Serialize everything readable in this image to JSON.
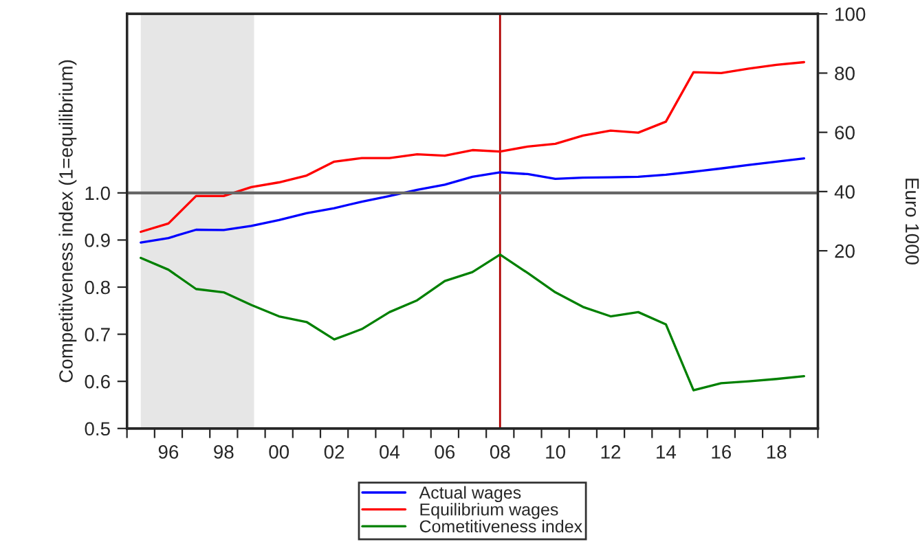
{
  "chart_data": {
    "type": "line",
    "ylabel": "Competitiveness index (1=equilibrium)",
    "y2label": "Euro 1000",
    "x": [
      1995,
      1996,
      1997,
      1998,
      1999,
      2000,
      2001,
      2002,
      2003,
      2004,
      2005,
      2006,
      2007,
      2008,
      2009,
      2010,
      2011,
      2012,
      2013,
      2014,
      2015,
      2016,
      2017,
      2018,
      2019
    ],
    "series": [
      {
        "name": "Actual wages",
        "color": "#0000ff",
        "axis": "y2",
        "values": [
          22.8,
          24.3,
          27.1,
          27.0,
          28.4,
          30.4,
          32.7,
          34.4,
          36.6,
          38.5,
          40.6,
          42.3,
          45.0,
          46.5,
          45.9,
          44.3,
          44.7,
          44.8,
          45.0,
          45.7,
          46.7,
          47.8,
          49.0,
          50.1,
          51.2
        ]
      },
      {
        "name": "Equilibrium wages",
        "color": "#ff0000",
        "axis": "y2",
        "values": [
          26.4,
          29.2,
          38.5,
          38.5,
          41.5,
          43.1,
          45.4,
          50.1,
          51.3,
          51.3,
          52.6,
          52.1,
          54.0,
          53.5,
          55.2,
          56.1,
          58.9,
          60.6,
          59.9,
          63.6,
          80.3,
          80.0,
          81.5,
          82.8,
          83.7
        ]
      },
      {
        "name": "Cometitiveness index",
        "color": "#008000",
        "values": [
          0.862,
          0.837,
          0.796,
          0.789,
          0.762,
          0.738,
          0.726,
          0.689,
          0.711,
          0.747,
          0.772,
          0.813,
          0.832,
          0.869,
          0.83,
          0.789,
          0.758,
          0.738,
          0.747,
          0.721,
          0.581,
          0.596,
          0.6,
          0.605,
          0.611
        ]
      }
    ],
    "xlim": [
      1994.5,
      2019.5
    ],
    "xticks": [
      {
        "value": 1994.5,
        "label": null
      },
      {
        "value": 1995.5,
        "label": null
      },
      {
        "value": 1996,
        "label": "96"
      },
      {
        "value": 1996.5,
        "label": null
      },
      {
        "value": 1997.5,
        "label": null
      },
      {
        "value": 1998,
        "label": "98"
      },
      {
        "value": 1998.5,
        "label": null
      },
      {
        "value": 1999.5,
        "label": null
      },
      {
        "value": 2000,
        "label": "00"
      },
      {
        "value": 2000.5,
        "label": null
      },
      {
        "value": 2001.5,
        "label": null
      },
      {
        "value": 2002,
        "label": "02"
      },
      {
        "value": 2002.5,
        "label": null
      },
      {
        "value": 2003.5,
        "label": null
      },
      {
        "value": 2004,
        "label": "04"
      },
      {
        "value": 2004.5,
        "label": null
      },
      {
        "value": 2005.5,
        "label": null
      },
      {
        "value": 2006,
        "label": "06"
      },
      {
        "value": 2006.5,
        "label": null
      },
      {
        "value": 2007.5,
        "label": null
      },
      {
        "value": 2008,
        "label": "08"
      },
      {
        "value": 2008.5,
        "label": null
      },
      {
        "value": 2009.5,
        "label": null
      },
      {
        "value": 2010,
        "label": "10"
      },
      {
        "value": 2010.5,
        "label": null
      },
      {
        "value": 2011.5,
        "label": null
      },
      {
        "value": 2012,
        "label": "12"
      },
      {
        "value": 2012.5,
        "label": null
      },
      {
        "value": 2013.5,
        "label": null
      },
      {
        "value": 2014,
        "label": "14"
      },
      {
        "value": 2014.5,
        "label": null
      },
      {
        "value": 2015.5,
        "label": null
      },
      {
        "value": 2016,
        "label": "16"
      },
      {
        "value": 2016.5,
        "label": null
      },
      {
        "value": 2017.5,
        "label": null
      },
      {
        "value": 2018,
        "label": "18"
      },
      {
        "value": 2018.5,
        "label": null
      },
      {
        "value": 2019.5,
        "label": null
      }
    ],
    "ylim": [
      0.5,
      1.38
    ],
    "yticks": [
      {
        "value": 0.5,
        "label": "0.5"
      },
      {
        "value": 0.6,
        "label": "0.6"
      },
      {
        "value": 0.7,
        "label": "0.7"
      },
      {
        "value": 0.8,
        "label": "0.8"
      },
      {
        "value": 0.9,
        "label": "0.9"
      },
      {
        "value": 1.0,
        "label": "1.0"
      }
    ],
    "y2lim": [
      -40,
      100
    ],
    "y2ticks": [
      20,
      40,
      60,
      80,
      100
    ],
    "ref_lines": [
      {
        "axis": "y",
        "value": 1.0,
        "color": "#666666"
      },
      {
        "axis": "x",
        "value": 2008,
        "color": "#b00000"
      }
    ],
    "bands": [
      {
        "axis": "x",
        "from": 1995,
        "to": 1999.1,
        "color": "#e6e6e6"
      }
    ],
    "grid": false,
    "legend": "bottom",
    "line_style": "solid",
    "marker": "none"
  }
}
